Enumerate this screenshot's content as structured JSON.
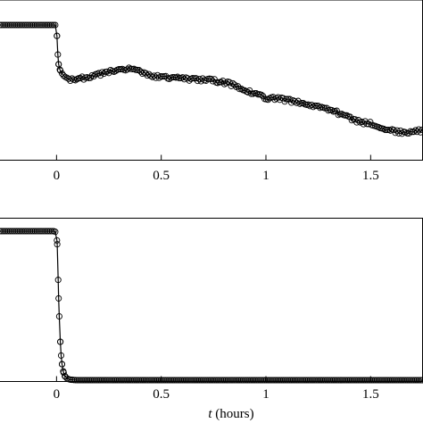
{
  "chart_data": [
    {
      "type": "scatter",
      "xlim": [
        -0.27,
        1.75
      ],
      "ylim": [
        -1.0,
        1.1
      ],
      "x_ticks": [
        0,
        0.5,
        1,
        1.5
      ],
      "x_tick_labels": [
        "0",
        "0.5",
        "1",
        "1.5"
      ],
      "xlabel": "",
      "ylabel": "",
      "y_tick_labels": [],
      "grid": false,
      "markers": "open-circle-with-line",
      "series": [
        {
          "x": [
            -0.27,
            -0.2,
            -0.1,
            -0.04,
            -0.01,
            0.0,
            0.005,
            0.01,
            0.015,
            0.02,
            0.03,
            0.05,
            0.08,
            0.12,
            0.18,
            0.25,
            0.3,
            0.34,
            0.38,
            0.45,
            0.55,
            0.65,
            0.72,
            0.8,
            0.9,
            0.96,
            1.0,
            1.05,
            1.1,
            1.2,
            1.3,
            1.4,
            1.45,
            1.5,
            1.55,
            1.6,
            1.65,
            1.7,
            1.75
          ],
          "y": [
            1.0,
            1.0,
            1.0,
            1.0,
            1.0,
            1.0,
            0.62,
            0.45,
            0.38,
            0.35,
            0.3,
            0.24,
            0.24,
            0.25,
            0.29,
            0.34,
            0.37,
            0.38,
            0.36,
            0.28,
            0.26,
            0.24,
            0.23,
            0.2,
            0.1,
            0.02,
            -0.02,
            -0.03,
            -0.05,
            -0.12,
            -0.18,
            -0.3,
            -0.36,
            -0.38,
            -0.44,
            -0.48,
            -0.5,
            -0.5,
            -0.48
          ]
        }
      ]
    },
    {
      "type": "scatter",
      "xlim": [
        -0.27,
        1.75
      ],
      "ylim": [
        -0.05,
        1.0
      ],
      "x_ticks": [
        0,
        0.5,
        1,
        1.5
      ],
      "x_tick_labels": [
        "0",
        "0.5",
        "1",
        "1.5"
      ],
      "xlabel": "t (hours)",
      "xlabel_var": "t",
      "xlabel_unit": " (hours)",
      "ylabel": "",
      "y_tick_labels": [],
      "grid": false,
      "markers": "open-circle-with-line",
      "series": [
        {
          "x": [
            -0.27,
            -0.2,
            -0.1,
            -0.03,
            -0.01,
            0.0,
            0.005,
            0.01,
            0.015,
            0.02,
            0.025,
            0.03,
            0.04,
            0.05,
            0.06,
            0.08,
            0.1,
            0.2,
            0.4,
            0.6,
            0.8,
            1.0,
            1.2,
            1.4,
            1.6,
            1.75
          ],
          "y": [
            1.0,
            1.0,
            1.0,
            1.0,
            1.0,
            0.99,
            0.86,
            0.55,
            0.35,
            0.2,
            0.12,
            0.07,
            0.03,
            0.015,
            0.008,
            0.004,
            0.003,
            0.003,
            0.003,
            0.003,
            0.003,
            0.003,
            0.003,
            0.003,
            0.003,
            0.003
          ]
        }
      ]
    }
  ]
}
